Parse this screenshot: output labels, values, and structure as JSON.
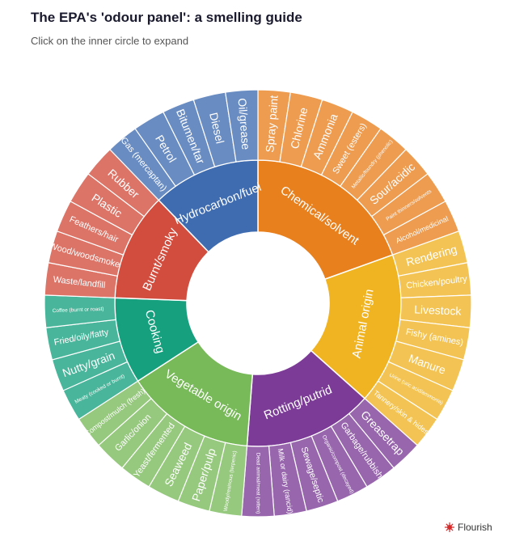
{
  "header": {
    "title": "The EPA's 'odour panel': a smelling guide",
    "subtitle": "Click on the inner circle to expand"
  },
  "footer": {
    "credit": "Flourish"
  },
  "colors": {
    "chemical": "#e8801e",
    "animal": "#f0b322",
    "rotting": "#7b3b96",
    "vegetable": "#78b959",
    "cooking": "#16a07e",
    "burnt": "#d24d3e",
    "hydrocarbon": "#3f6cb1",
    "flourish": "#d42b2b"
  },
  "chart_data": {
    "type": "sunburst",
    "categories": [
      {
        "name": "Chemical/solvent",
        "color": "#e8801e",
        "children": [
          "Spray paint",
          "Chlorine",
          "Ammonia",
          "Sweet (esters)",
          "Metallic/foundry (phenolic)",
          "Sour/acidic",
          "Paint thinners/solvents",
          "Alcohol/medicinal"
        ]
      },
      {
        "name": "Animal origin",
        "color": "#f0b322",
        "children": [
          "Rendering",
          "Chicken/poultry",
          "Livestock",
          "Fishy (amines)",
          "Manure",
          "Urine (uric acid/ammonia)",
          "Tannery/skin & hides"
        ]
      },
      {
        "name": "Rotting/putrid",
        "color": "#7b3b96",
        "children": [
          "Greasetrap",
          "Garbage/rubbish",
          "Organic/compost (decayed)",
          "Sewage/septic",
          "Milk or dairy (rancid)",
          "Dead animal/meat (rotten)"
        ]
      },
      {
        "name": "Vegetable origin",
        "color": "#78b959",
        "children": [
          "Woody/resinous (terpenic)",
          "Paper/pulp",
          "Seaweed",
          "Yeast/fermented",
          "Garlic/onion",
          "Compost/mulch (fresh)"
        ]
      },
      {
        "name": "Cooking",
        "color": "#16a07e",
        "children": [
          "Meaty (cooked or burnt)",
          "Nutty/grain",
          "Fried/oily/fatty",
          "Coffee (burnt or roast)"
        ]
      },
      {
        "name": "Burnt/smoky",
        "color": "#d24d3e",
        "children": [
          "Waste/landfill",
          "Wood/woodsmoke",
          "Feathers/hair",
          "Plastic",
          "Rubber"
        ]
      },
      {
        "name": "Hydrocarbon/fuel",
        "color": "#3f6cb1",
        "children": [
          "Gas (mercaptan)",
          "Petrol",
          "Bitumen/tar",
          "Diesel",
          "Oil/grease"
        ]
      }
    ]
  }
}
